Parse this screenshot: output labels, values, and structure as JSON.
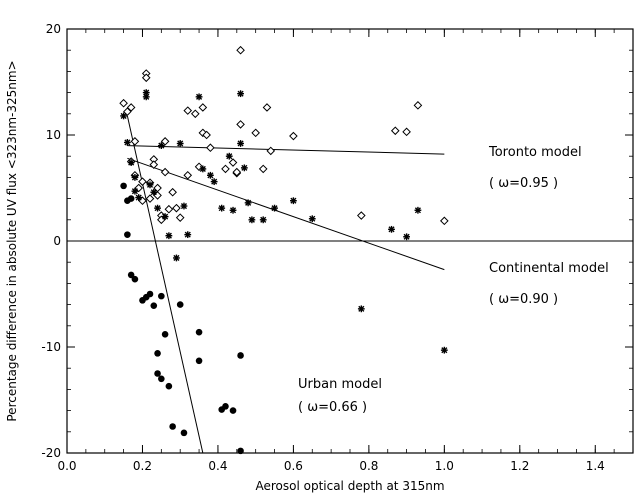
{
  "chart_data": {
    "type": "scatter",
    "title": "",
    "xlabel": "Aerosol optical depth at 315nm",
    "ylabel": "Percentage difference in absolute UV flux <323nm-325nm>",
    "xlim": [
      0.0,
      1.5
    ],
    "ylim": [
      -20,
      20
    ],
    "xticks": [
      0.0,
      0.2,
      0.4,
      0.6,
      0.8,
      1.0,
      1.2,
      1.4
    ],
    "xtick_labels": [
      "0.0",
      "0.2",
      "0.4",
      "0.6",
      "0.8",
      "1.0",
      "1.2",
      "1.4"
    ],
    "yticks": [
      -20,
      -10,
      0,
      10,
      20
    ],
    "ytick_labels": [
      "-20",
      "-10",
      "0",
      "10",
      "20"
    ],
    "grid": false,
    "series": [
      {
        "marker": "open-diamond",
        "points": [
          [
            0.15,
            13.0
          ],
          [
            0.16,
            12.2
          ],
          [
            0.17,
            12.6
          ],
          [
            0.18,
            9.4
          ],
          [
            0.17,
            7.5
          ],
          [
            0.18,
            6.2
          ],
          [
            0.19,
            5.0
          ],
          [
            0.2,
            3.8
          ],
          [
            0.2,
            5.6
          ],
          [
            0.21,
            15.8
          ],
          [
            0.21,
            15.4
          ],
          [
            0.22,
            5.5
          ],
          [
            0.22,
            4.0
          ],
          [
            0.23,
            7.7
          ],
          [
            0.23,
            7.2
          ],
          [
            0.24,
            5.0
          ],
          [
            0.24,
            4.3
          ],
          [
            0.25,
            2.4
          ],
          [
            0.25,
            2.0
          ],
          [
            0.26,
            9.4
          ],
          [
            0.26,
            6.5
          ],
          [
            0.27,
            3.0
          ],
          [
            0.28,
            4.6
          ],
          [
            0.29,
            3.1
          ],
          [
            0.3,
            2.2
          ],
          [
            0.32,
            12.3
          ],
          [
            0.32,
            6.2
          ],
          [
            0.34,
            12.0
          ],
          [
            0.35,
            7.0
          ],
          [
            0.36,
            12.6
          ],
          [
            0.36,
            10.2
          ],
          [
            0.37,
            10.0
          ],
          [
            0.38,
            8.8
          ],
          [
            0.42,
            6.8
          ],
          [
            0.44,
            7.4
          ],
          [
            0.45,
            6.4
          ],
          [
            0.45,
            6.5
          ],
          [
            0.46,
            18.0
          ],
          [
            0.46,
            11.0
          ],
          [
            0.5,
            10.2
          ],
          [
            0.52,
            6.8
          ],
          [
            0.53,
            12.6
          ],
          [
            0.54,
            8.5
          ],
          [
            0.6,
            9.9
          ],
          [
            0.78,
            2.4
          ],
          [
            0.87,
            10.4
          ],
          [
            0.9,
            10.3
          ],
          [
            0.93,
            12.8
          ],
          [
            1.0,
            1.9
          ]
        ]
      },
      {
        "marker": "asterisk",
        "points": [
          [
            0.15,
            11.8
          ],
          [
            0.16,
            9.3
          ],
          [
            0.17,
            7.4
          ],
          [
            0.18,
            6.0
          ],
          [
            0.18,
            4.7
          ],
          [
            0.19,
            4.1
          ],
          [
            0.21,
            14.0
          ],
          [
            0.21,
            13.6
          ],
          [
            0.22,
            5.3
          ],
          [
            0.23,
            4.6
          ],
          [
            0.24,
            3.1
          ],
          [
            0.25,
            9.0
          ],
          [
            0.26,
            2.3
          ],
          [
            0.27,
            0.5
          ],
          [
            0.29,
            -1.6
          ],
          [
            0.3,
            9.2
          ],
          [
            0.31,
            3.3
          ],
          [
            0.32,
            0.6
          ],
          [
            0.35,
            13.6
          ],
          [
            0.36,
            6.8
          ],
          [
            0.38,
            6.2
          ],
          [
            0.39,
            5.6
          ],
          [
            0.41,
            3.1
          ],
          [
            0.43,
            8.0
          ],
          [
            0.44,
            2.9
          ],
          [
            0.46,
            13.9
          ],
          [
            0.46,
            9.2
          ],
          [
            0.47,
            6.9
          ],
          [
            0.48,
            3.6
          ],
          [
            0.49,
            2.0
          ],
          [
            0.52,
            2.0
          ],
          [
            0.55,
            3.1
          ],
          [
            0.6,
            3.8
          ],
          [
            0.65,
            2.1
          ],
          [
            0.78,
            -6.4
          ],
          [
            0.86,
            1.1
          ],
          [
            0.9,
            0.4
          ],
          [
            0.93,
            2.9
          ],
          [
            1.0,
            -10.3
          ]
        ]
      },
      {
        "marker": "filled-circle",
        "points": [
          [
            0.15,
            5.2
          ],
          [
            0.16,
            3.8
          ],
          [
            0.16,
            0.6
          ],
          [
            0.17,
            4.0
          ],
          [
            0.17,
            -3.2
          ],
          [
            0.18,
            -3.6
          ],
          [
            0.2,
            -5.6
          ],
          [
            0.21,
            -5.3
          ],
          [
            0.22,
            -5.0
          ],
          [
            0.23,
            -6.1
          ],
          [
            0.24,
            -10.6
          ],
          [
            0.24,
            -12.5
          ],
          [
            0.25,
            -13.0
          ],
          [
            0.25,
            -5.2
          ],
          [
            0.26,
            -8.8
          ],
          [
            0.27,
            -13.7
          ],
          [
            0.28,
            -17.5
          ],
          [
            0.3,
            -6.0
          ],
          [
            0.31,
            -18.1
          ],
          [
            0.35,
            -8.6
          ],
          [
            0.35,
            -11.3
          ],
          [
            0.41,
            -15.9
          ],
          [
            0.42,
            -15.6
          ],
          [
            0.44,
            -16.0
          ],
          [
            0.46,
            -10.8
          ],
          [
            0.46,
            -19.8
          ]
        ]
      }
    ],
    "lines": [
      {
        "x": [
          0.16,
          1.0
        ],
        "y": [
          9.0,
          8.2
        ]
      },
      {
        "x": [
          0.16,
          1.0
        ],
        "y": [
          7.8,
          -2.7
        ]
      },
      {
        "x": [
          0.16,
          0.36
        ],
        "y": [
          11.8,
          -20.0
        ]
      },
      {
        "x": [
          0.0,
          1.5
        ],
        "y": [
          0.0,
          0.0
        ]
      }
    ],
    "annotations": {
      "toronto_label": "Toronto model",
      "toronto_omega": "( ω=0.95 )",
      "continental_label": "Continental model",
      "continental_omega": "( ω=0.90 )",
      "urban_label": "Urban model",
      "urban_omega": "( ω=0.66 )"
    }
  }
}
